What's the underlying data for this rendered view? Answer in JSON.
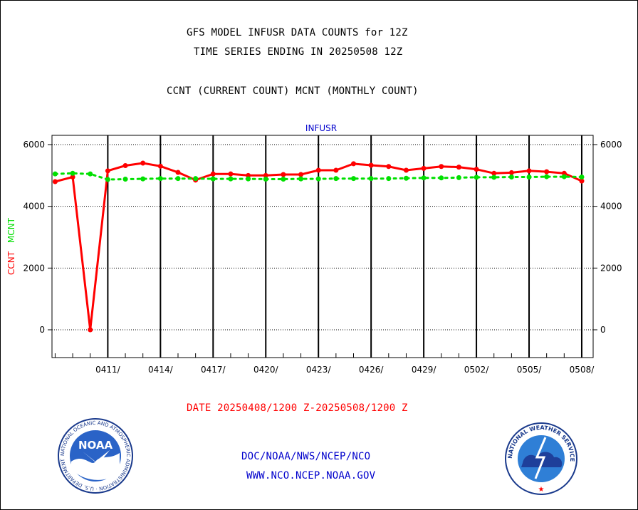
{
  "header": {
    "title_line1": "GFS MODEL INFUSR DATA COUNTS for 12Z",
    "title_line2": "TIME SERIES ENDING IN 20250508 12Z",
    "subtitle": "CCNT (CURRENT COUNT) MCNT (MONTHLY COUNT)"
  },
  "footer": {
    "date_range": "DATE 20250408/1200 Z-20250508/1200 Z",
    "org": "DOC/NOAA/NWS/NCEP/NCO",
    "url": "WWW.NCO.NCEP.NOAA.GOV",
    "noaa_logo_text": "NOAA",
    "noaa_ring_text": "NATIONAL OCEANIC AND ATMOSPHERIC ADMINISTRATION · U.S. DEPARTMENT OF COMMERCE",
    "nws_ring_text": "NATIONAL WEATHER SERVICE"
  },
  "colors": {
    "ccnt": "#ff0000",
    "mcnt": "#00e000",
    "date_text": "#ff0000",
    "blue_text": "#0000cc"
  },
  "chart_data": {
    "type": "line",
    "title": "INFUSR",
    "ylabel_parts": [
      "CCNT",
      "MCNT"
    ],
    "xlim": [
      0,
      30
    ],
    "ylim": [
      -900,
      6300
    ],
    "yticks": [
      0,
      2000,
      4000,
      6000
    ],
    "x_tick_labels": [
      {
        "x": 3,
        "label": "0411/"
      },
      {
        "x": 6,
        "label": "0414/"
      },
      {
        "x": 9,
        "label": "0417/"
      },
      {
        "x": 12,
        "label": "0420/"
      },
      {
        "x": 15,
        "label": "0423/"
      },
      {
        "x": 18,
        "label": "0426/"
      },
      {
        "x": 21,
        "label": "0429/"
      },
      {
        "x": 24,
        "label": "0502/"
      },
      {
        "x": 27,
        "label": "0505/"
      },
      {
        "x": 30,
        "label": "0508/"
      }
    ],
    "x_dates": [
      "0408",
      "0409",
      "0410",
      "0411",
      "0412",
      "0413",
      "0414",
      "0415",
      "0416",
      "0417",
      "0418",
      "0419",
      "0420",
      "0421",
      "0422",
      "0423",
      "0424",
      "0425",
      "0426",
      "0427",
      "0428",
      "0429",
      "0430",
      "0501",
      "0502",
      "0503",
      "0504",
      "0505",
      "0506",
      "0507",
      "0508"
    ],
    "series": [
      {
        "name": "CCNT",
        "color": "#ff0000",
        "values": [
          4800,
          4950,
          0,
          5150,
          5320,
          5400,
          5300,
          5100,
          4850,
          5050,
          5050,
          5000,
          5000,
          5030,
          5030,
          5170,
          5170,
          5380,
          5330,
          5290,
          5170,
          5230,
          5290,
          5270,
          5200,
          5070,
          5090,
          5150,
          5120,
          5070,
          4820
        ]
      },
      {
        "name": "MCNT",
        "color": "#00e000",
        "values": [
          5050,
          5070,
          5050,
          4870,
          4880,
          4890,
          4900,
          4900,
          4900,
          4890,
          4890,
          4890,
          4880,
          4880,
          4890,
          4890,
          4900,
          4900,
          4900,
          4900,
          4910,
          4920,
          4920,
          4930,
          4940,
          4940,
          4950,
          4950,
          4960,
          4960,
          4950
        ]
      }
    ]
  }
}
